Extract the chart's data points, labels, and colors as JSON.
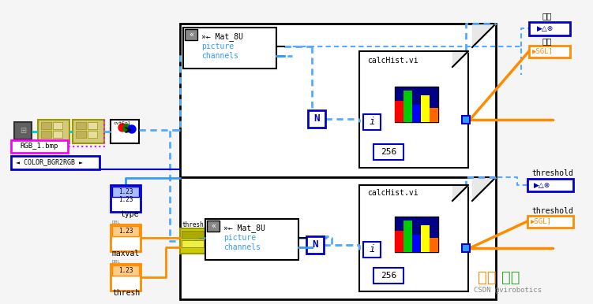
{
  "bg_color": "#F5F5F5",
  "colors": {
    "blue_wire": "#55AAFF",
    "cyan_wire": "#00CCCC",
    "orange_wire": "#FF8C00",
    "magenta": "#FF00FF",
    "blue_dark": "#0000CC",
    "node_tan": "#D4C87A",
    "node_tan2": "#C0B060",
    "node_tan3": "#E8DCA0",
    "gray": "#707070",
    "yellow_node": "#CCCC00",
    "loop_bg": "#FFFFFF",
    "dog_ear": "#E8E8E8"
  },
  "hist_colors": [
    "#FF0000",
    "#00CC00",
    "#0000FF",
    "#FFFF00",
    "#FF6600"
  ],
  "watermark1": "吉林",
  "watermark2": "龙网",
  "watermark3": "CSDN @virobotics"
}
